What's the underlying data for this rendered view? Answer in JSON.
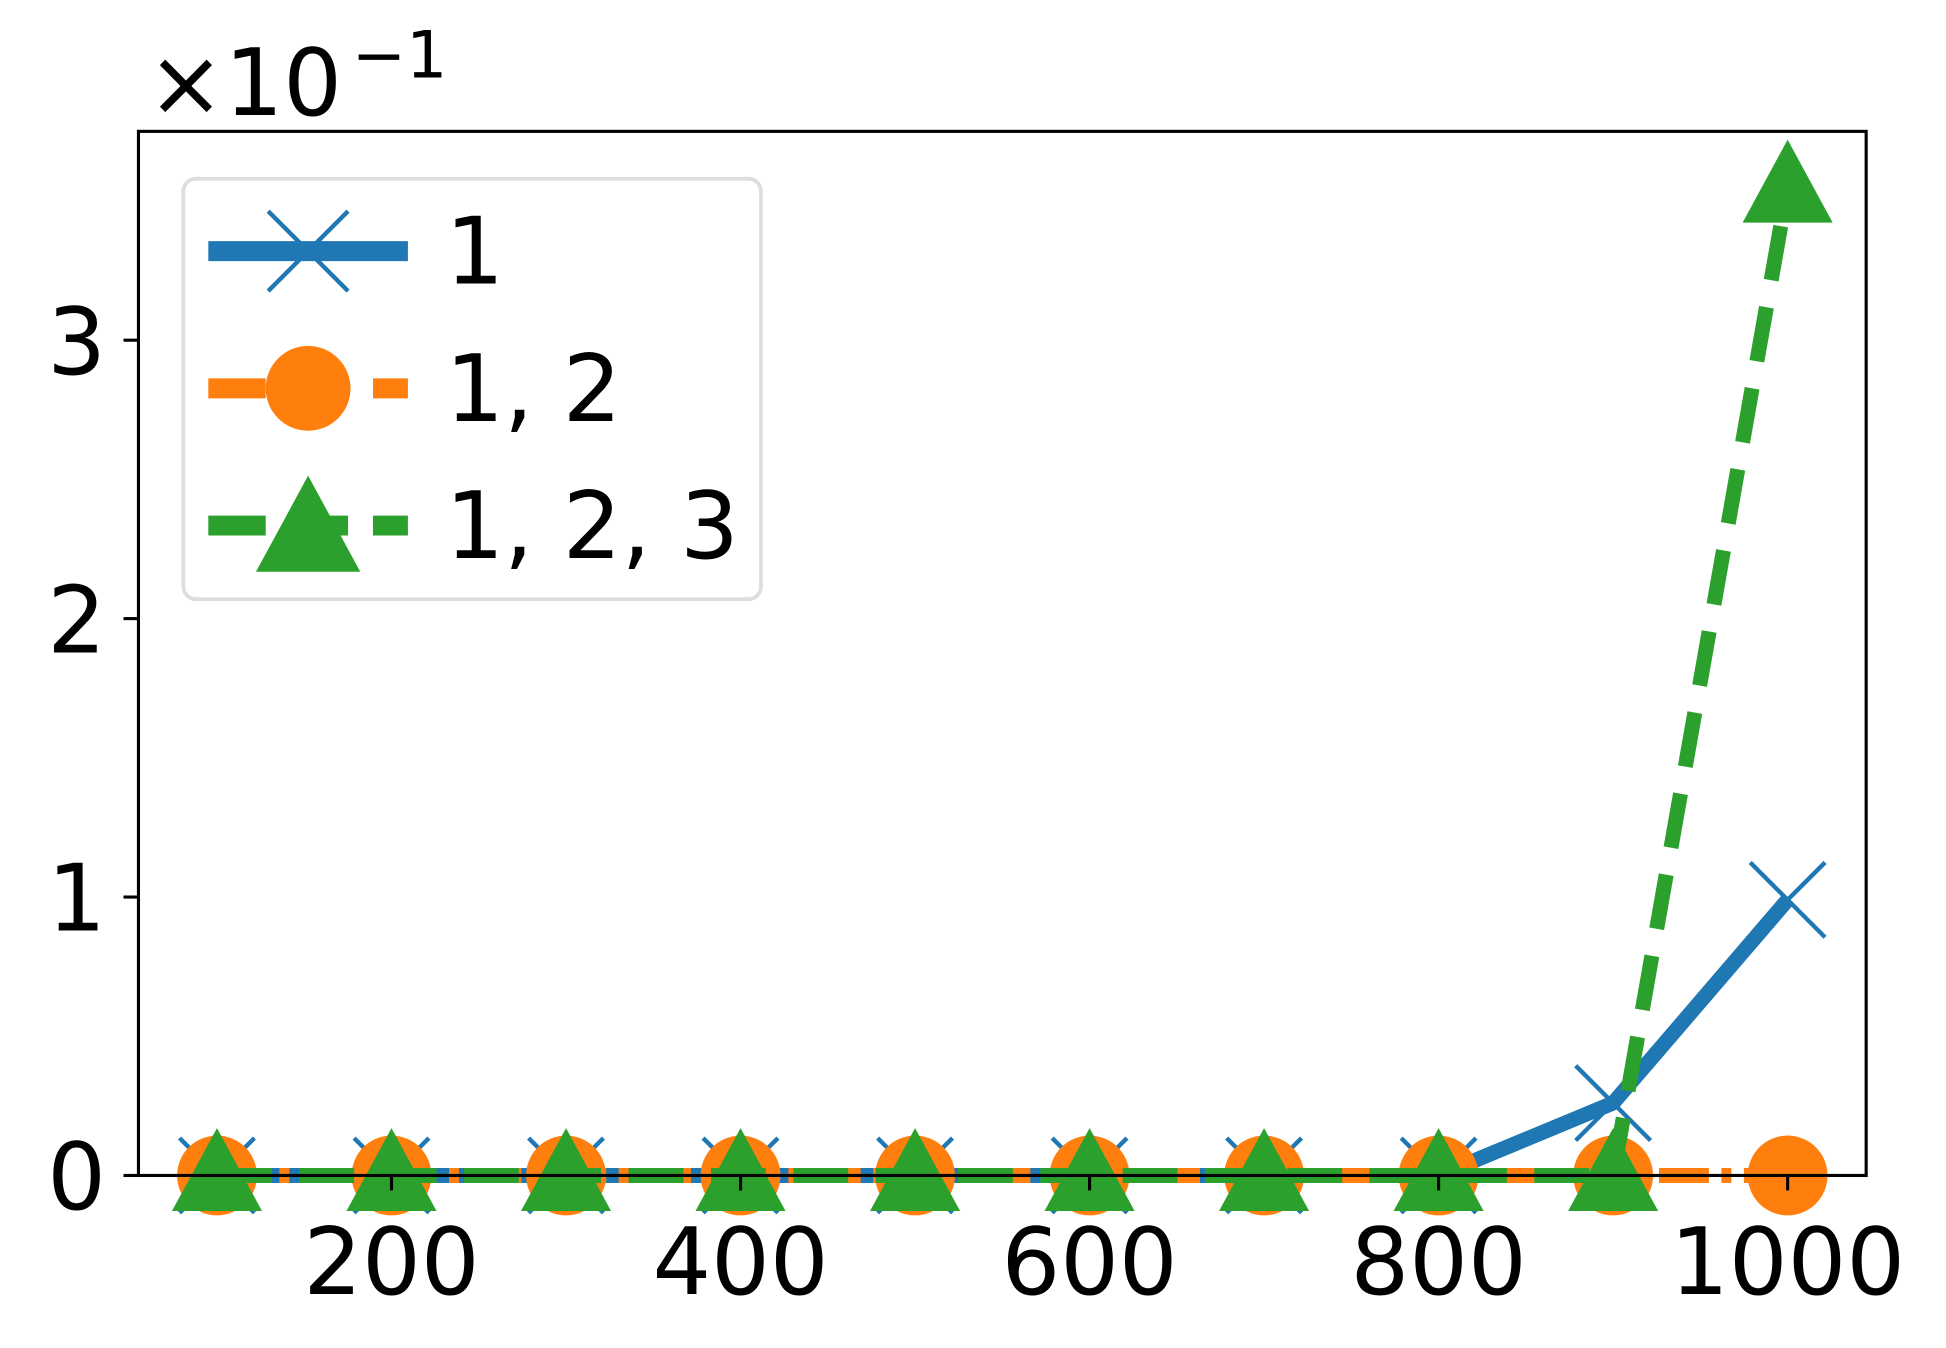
{
  "chart_data": {
    "type": "line",
    "x": [
      100,
      200,
      300,
      400,
      500,
      600,
      700,
      800,
      900,
      1000
    ],
    "series": [
      {
        "name": "1",
        "color": "#1f77b4",
        "linestyle": "solid",
        "marker": "x",
        "values": [
          0,
          0,
          0,
          0,
          0,
          0,
          0,
          0,
          0.26,
          0.99
        ]
      },
      {
        "name": "1, 2",
        "color": "#ff7f0e",
        "linestyle": "dashdot",
        "marker": "o",
        "values": [
          0,
          0,
          0,
          0,
          0,
          0,
          0,
          0,
          0,
          0
        ]
      },
      {
        "name": "1, 2, 3",
        "color": "#2ca02c",
        "linestyle": "dashed",
        "marker": "^",
        "values": [
          0,
          0,
          0,
          0,
          0,
          0,
          0,
          0,
          0,
          3.55
        ]
      }
    ],
    "xlim": [
      55,
      1045
    ],
    "xticks": [
      200,
      400,
      600,
      800,
      1000
    ],
    "ylim": [
      0,
      3.75
    ],
    "yticks": [
      0,
      1,
      2,
      3
    ],
    "y_scale_label": {
      "base": "×10",
      "exponent": "−1"
    },
    "legend": "upper left",
    "grid": false
  }
}
